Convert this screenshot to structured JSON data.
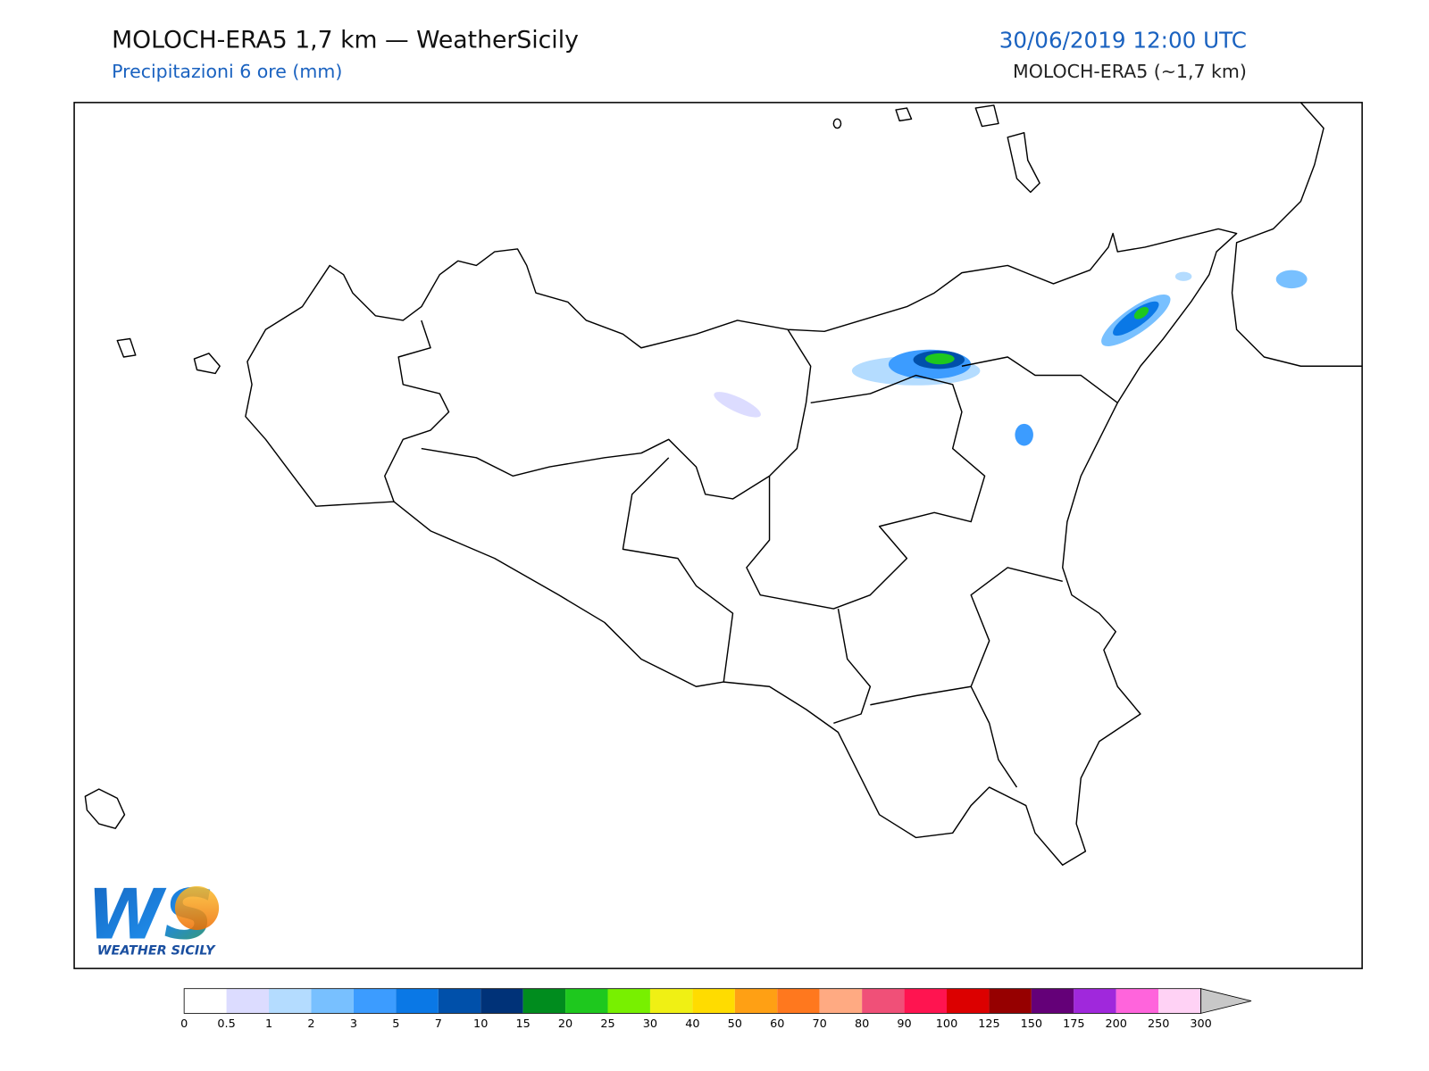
{
  "header": {
    "title": "MOLOCH-ERA5 1,7 km — WeatherSicily",
    "subtitle": "Precipitazioni 6 ore (mm)",
    "date": "30/06/2019 12:00 UTC",
    "model": "MOLOCH-ERA5 (~1,7 km)"
  },
  "logo": {
    "mark": "WS",
    "text": "WEATHER SICILY"
  },
  "colorbar": {
    "ticks": [
      0,
      0.5,
      1,
      2,
      3,
      5,
      7,
      10,
      15,
      20,
      25,
      30,
      40,
      50,
      60,
      70,
      80,
      90,
      100,
      125,
      150,
      175,
      200,
      250,
      300
    ],
    "colors": [
      "#ffffff",
      "#dcdcff",
      "#b4dcff",
      "#78c0ff",
      "#3c9cff",
      "#0a78e6",
      "#0050aa",
      "#003278",
      "#008c1e",
      "#1ec81e",
      "#78f000",
      "#f0f014",
      "#ffdc00",
      "#ffa014",
      "#ff781e",
      "#ffaa82",
      "#f05078",
      "#ff1450",
      "#dc0000",
      "#960000",
      "#640078",
      "#a028dc",
      "#ff64dc",
      "#ffd2f5"
    ],
    "extend_color": "#c8c8c8"
  }
}
